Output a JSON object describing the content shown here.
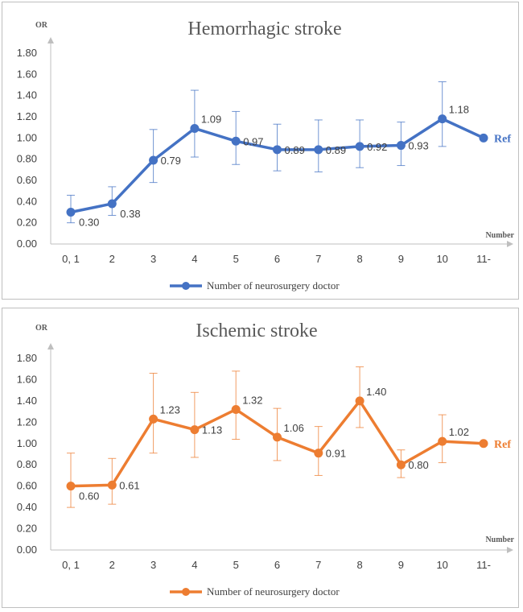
{
  "chart_data": [
    {
      "type": "line",
      "title": "Hemorrhagic stroke",
      "ylabel": "OR",
      "xlabel": "Number",
      "categories": [
        "0, 1",
        "2",
        "3",
        "4",
        "5",
        "6",
        "7",
        "8",
        "9",
        "10",
        "11-"
      ],
      "ylim": [
        0,
        1.8
      ],
      "yticks": [
        "0.00",
        "0.20",
        "0.40",
        "0.60",
        "0.80",
        "1.00",
        "1.20",
        "1.40",
        "1.60",
        "1.80"
      ],
      "color": "#4472C4",
      "series": [
        {
          "name": "Number of neurosurgery doctor",
          "values": [
            0.3,
            0.38,
            0.79,
            1.09,
            0.97,
            0.89,
            0.89,
            0.92,
            0.93,
            1.18,
            1.0
          ],
          "labels": [
            "0.30",
            "0.38",
            "0.79",
            "1.09",
            "0.97",
            "0.89",
            "0.89",
            "0.92",
            "0.93",
            "1.18",
            "Ref"
          ],
          "ci_low": [
            0.2,
            0.27,
            0.58,
            0.82,
            0.75,
            0.69,
            0.68,
            0.72,
            0.74,
            0.92,
            null
          ],
          "ci_high": [
            0.46,
            0.54,
            1.08,
            1.45,
            1.25,
            1.13,
            1.17,
            1.17,
            1.15,
            1.53,
            null
          ]
        }
      ],
      "grid": false,
      "legend": "bottom"
    },
    {
      "type": "line",
      "title": "Ischemic stroke",
      "ylabel": "OR",
      "xlabel": "Number",
      "categories": [
        "0, 1",
        "2",
        "3",
        "4",
        "5",
        "6",
        "7",
        "8",
        "9",
        "10",
        "11-"
      ],
      "ylim": [
        0,
        1.8
      ],
      "yticks": [
        "0.00",
        "0.20",
        "0.40",
        "0.60",
        "0.80",
        "1.00",
        "1.20",
        "1.40",
        "1.60",
        "1.80"
      ],
      "color": "#ED7D31",
      "series": [
        {
          "name": "Number of neurosurgery doctor",
          "values": [
            0.6,
            0.61,
            1.23,
            1.13,
            1.32,
            1.06,
            0.91,
            1.4,
            0.8,
            1.02,
            1.0
          ],
          "labels": [
            "0.60",
            "0.61",
            "1.23",
            "1.13",
            "1.32",
            "1.06",
            "0.91",
            "1.40",
            "0.80",
            "1.02",
            "Ref"
          ],
          "ci_low": [
            0.4,
            0.43,
            0.91,
            0.87,
            1.04,
            0.84,
            0.7,
            1.15,
            0.68,
            0.82,
            null
          ],
          "ci_high": [
            0.91,
            0.86,
            1.66,
            1.48,
            1.68,
            1.33,
            1.16,
            1.72,
            0.94,
            1.27,
            null
          ]
        }
      ],
      "grid": false,
      "legend": "bottom"
    }
  ]
}
